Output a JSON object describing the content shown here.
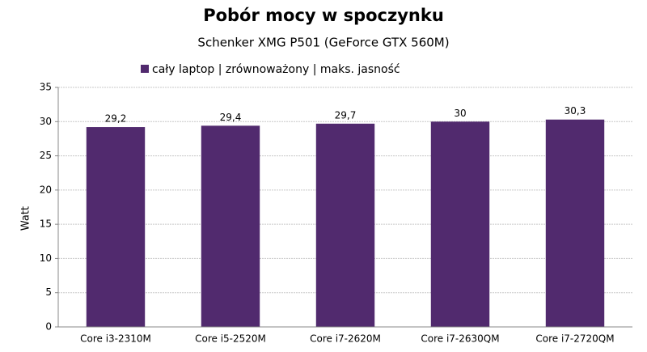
{
  "chart_data": {
    "type": "bar",
    "title": "Pobór mocy w spoczynku",
    "subtitle": "Schenker XMG P501 (GeForce GTX 560M)",
    "y_label": "Watt",
    "categories": [
      "Core i3-2310M",
      "Core i5-2520M",
      "Core i7-2620M",
      "Core i7-2630QM",
      "Core i7-2720QM"
    ],
    "series": [
      {
        "name": "cały laptop | zrównoważony | maks. jasność",
        "color": "#512a6e",
        "values": [
          29.2,
          29.4,
          29.7,
          30,
          30.3
        ],
        "value_labels": [
          "29,2",
          "29,4",
          "29,7",
          "30",
          "30,3"
        ]
      }
    ],
    "ylim": [
      0,
      35
    ],
    "yticks": [
      0,
      5,
      10,
      15,
      20,
      25,
      30,
      35
    ],
    "grid": true
  }
}
